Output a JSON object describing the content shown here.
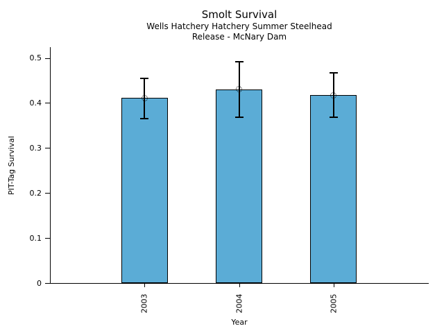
{
  "chart_data": {
    "type": "bar",
    "title": "Smolt Survival",
    "subtitle": [
      "Wells Hatchery Hatchery Summer Steelhead",
      "Release - McNary Dam"
    ],
    "categories": [
      "2003",
      "2004",
      "2005"
    ],
    "values": [
      0.411,
      0.43,
      0.417
    ],
    "error_low": [
      0.365,
      0.368,
      0.368
    ],
    "error_high": [
      0.455,
      0.491,
      0.467
    ],
    "xlabel": "Year",
    "ylabel": "PIT-Tag Survival",
    "ylim": [
      0,
      0.524
    ],
    "yticks": [
      0,
      0.1,
      0.2,
      0.3,
      0.4,
      0.5
    ],
    "ytick_labels": [
      "0",
      "0.1",
      "0.2",
      "0.3",
      "0.4",
      "0.5"
    ],
    "bar_color": "#5BACD6",
    "bar_edge_color": "#000000",
    "error_color": "#000000",
    "marker": "open-circle",
    "grid": false,
    "legend": null
  }
}
